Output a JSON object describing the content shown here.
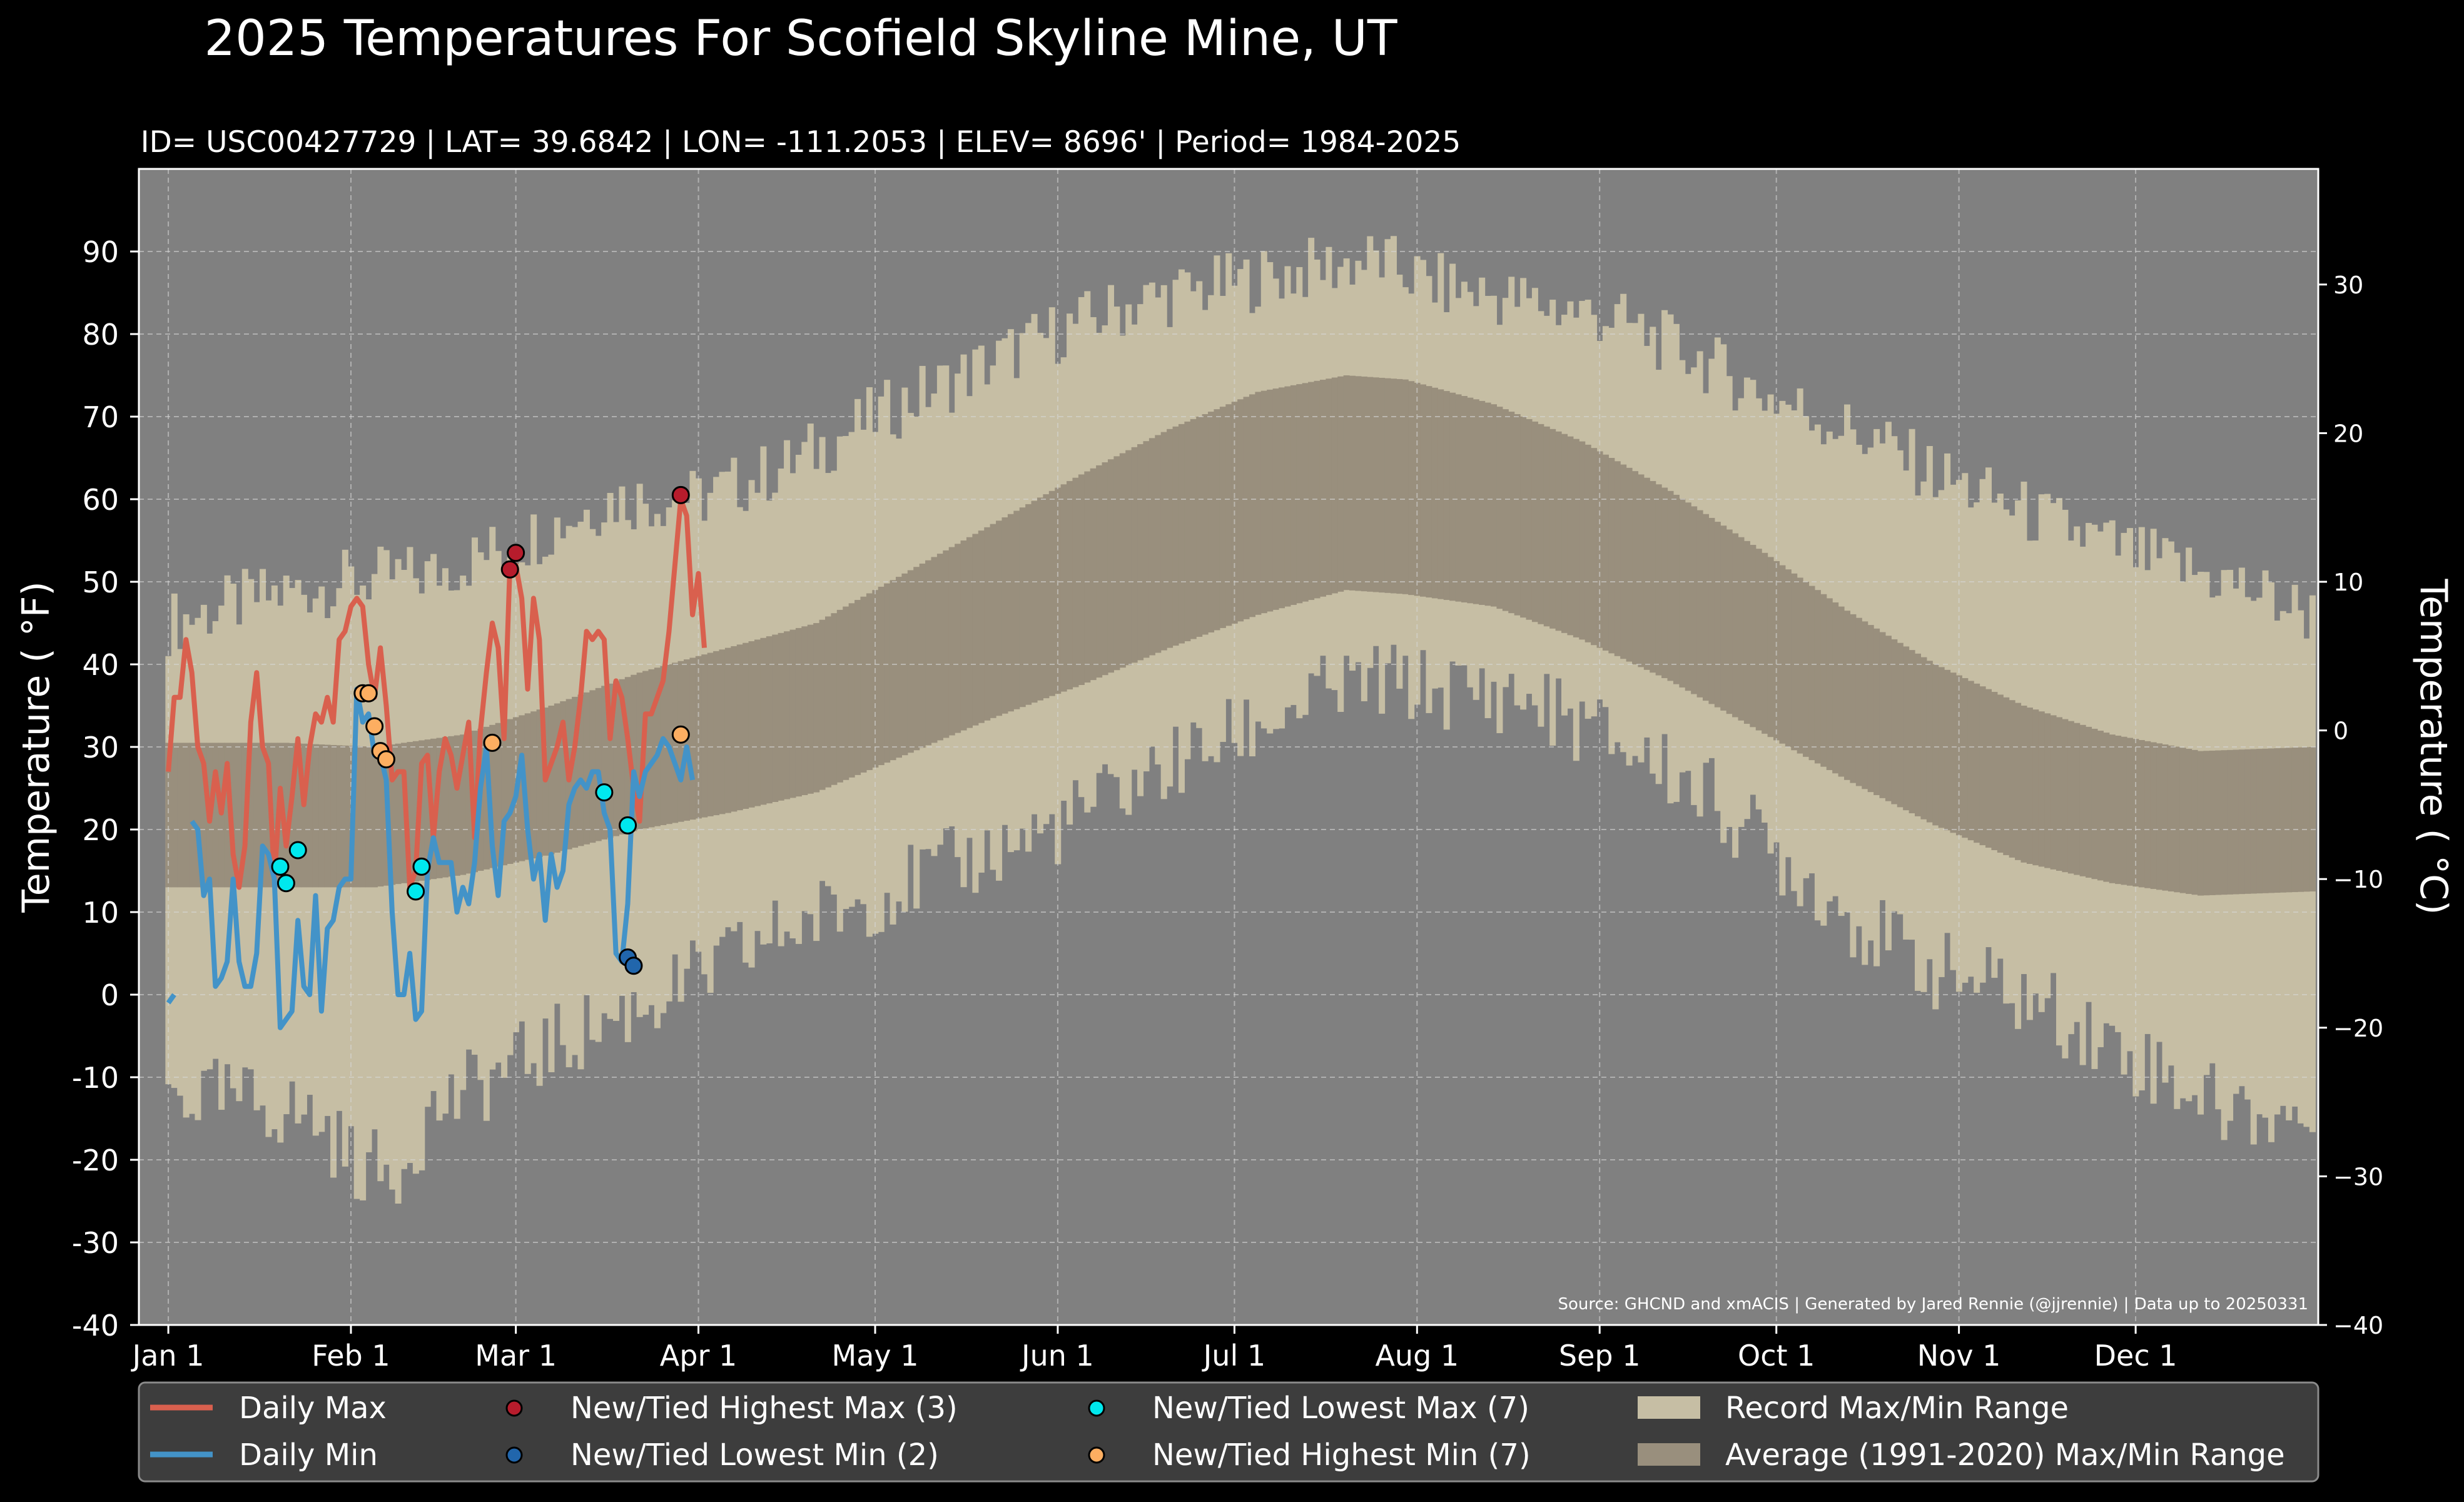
{
  "chart_data": {
    "type": "area",
    "title": "2025 Temperatures For Scofield Skyline Mine, UT",
    "subtitle": "ID= USC00427729 | LAT= 39.6842 | LON= -111.2053 | ELEV= 8696' | Period= 1984-2025",
    "ylabel": "Temperature ( °F)",
    "ylabel_right": "Temperature ( °C)",
    "source": "Source: GHCND and xmACIS | Generated by Jared Rennie (@jjrennie) | Data up to 20250331",
    "ylim": [
      -40,
      100
    ],
    "ylim_right": [
      -40,
      37.78
    ],
    "yticks": [
      -40,
      -30,
      -20,
      -10,
      0,
      10,
      20,
      30,
      40,
      50,
      60,
      70,
      80,
      90
    ],
    "yticks_right": [
      -40,
      -30,
      -20,
      -10,
      0,
      10,
      20,
      30
    ],
    "xlim_day": [
      -5,
      365
    ],
    "xticks": [
      {
        "day": 0,
        "label": "Jan 1"
      },
      {
        "day": 31,
        "label": "Feb 1"
      },
      {
        "day": 59,
        "label": "Mar 1"
      },
      {
        "day": 90,
        "label": "Apr 1"
      },
      {
        "day": 120,
        "label": "May 1"
      },
      {
        "day": 151,
        "label": "Jun 1"
      },
      {
        "day": 181,
        "label": "Jul 1"
      },
      {
        "day": 212,
        "label": "Aug 1"
      },
      {
        "day": 243,
        "label": "Sep 1"
      },
      {
        "day": 273,
        "label": "Oct 1"
      },
      {
        "day": 304,
        "label": "Nov 1"
      },
      {
        "day": 334,
        "label": "Dec 1"
      }
    ],
    "grid": true,
    "legend_position": "bottom",
    "colors": {
      "background": "#000000",
      "plot_bg": "#808080",
      "record_range": "#c6bea4",
      "average_range": "#998f7d",
      "daily_max": "#d9604e",
      "daily_min": "#4393c8",
      "highest_max": "#b71c2c",
      "lowest_min": "#2166ac",
      "lowest_max": "#00e8ee",
      "highest_min": "#fdae61",
      "legend_bg": "#3d3d3d"
    },
    "record_max_anchors": [
      [
        0,
        45
      ],
      [
        15,
        48
      ],
      [
        30,
        50
      ],
      [
        45,
        51
      ],
      [
        60,
        55
      ],
      [
        75,
        60
      ],
      [
        90,
        60
      ],
      [
        105,
        64
      ],
      [
        120,
        70
      ],
      [
        135,
        75
      ],
      [
        150,
        80
      ],
      [
        165,
        84
      ],
      [
        180,
        86
      ],
      [
        195,
        88
      ],
      [
        205,
        89
      ],
      [
        215,
        86
      ],
      [
        230,
        84
      ],
      [
        245,
        82
      ],
      [
        260,
        77
      ],
      [
        270,
        73
      ],
      [
        280,
        70
      ],
      [
        290,
        67
      ],
      [
        300,
        63
      ],
      [
        310,
        60
      ],
      [
        320,
        57
      ],
      [
        335,
        53
      ],
      [
        350,
        50
      ],
      [
        364,
        46
      ]
    ],
    "record_min_anchors": [
      [
        0,
        -12
      ],
      [
        15,
        -13
      ],
      [
        25,
        -15
      ],
      [
        31,
        -20
      ],
      [
        38,
        -22
      ],
      [
        45,
        -14
      ],
      [
        60,
        -8
      ],
      [
        75,
        -3
      ],
      [
        90,
        2
      ],
      [
        105,
        8
      ],
      [
        120,
        12
      ],
      [
        135,
        16
      ],
      [
        150,
        20
      ],
      [
        165,
        26
      ],
      [
        180,
        31
      ],
      [
        195,
        36
      ],
      [
        205,
        38
      ],
      [
        215,
        37
      ],
      [
        230,
        36
      ],
      [
        245,
        31
      ],
      [
        260,
        25
      ],
      [
        270,
        19
      ],
      [
        280,
        13
      ],
      [
        290,
        7
      ],
      [
        300,
        3
      ],
      [
        310,
        1
      ],
      [
        320,
        -2
      ],
      [
        335,
        -8
      ],
      [
        350,
        -14
      ],
      [
        364,
        -15
      ]
    ],
    "average_max_anchors": [
      [
        0,
        30.5
      ],
      [
        20,
        30.5
      ],
      [
        35,
        30
      ],
      [
        50,
        31.5
      ],
      [
        65,
        35
      ],
      [
        80,
        39
      ],
      [
        95,
        42
      ],
      [
        110,
        45
      ],
      [
        125,
        51
      ],
      [
        140,
        57
      ],
      [
        155,
        63
      ],
      [
        170,
        68.5
      ],
      [
        185,
        73
      ],
      [
        200,
        75
      ],
      [
        210,
        74.5
      ],
      [
        225,
        71.5
      ],
      [
        240,
        67
      ],
      [
        255,
        61
      ],
      [
        270,
        54
      ],
      [
        285,
        46.5
      ],
      [
        300,
        40
      ],
      [
        315,
        35
      ],
      [
        330,
        31.5
      ],
      [
        345,
        29.5
      ],
      [
        364,
        30
      ]
    ],
    "average_min_anchors": [
      [
        0,
        13
      ],
      [
        20,
        13
      ],
      [
        35,
        13
      ],
      [
        50,
        14.5
      ],
      [
        65,
        17
      ],
      [
        80,
        20
      ],
      [
        95,
        22
      ],
      [
        110,
        24.5
      ],
      [
        125,
        29
      ],
      [
        140,
        33.5
      ],
      [
        155,
        37.5
      ],
      [
        170,
        42
      ],
      [
        185,
        46
      ],
      [
        200,
        49
      ],
      [
        210,
        48.5
      ],
      [
        225,
        47
      ],
      [
        240,
        43
      ],
      [
        255,
        38
      ],
      [
        270,
        32
      ],
      [
        285,
        26
      ],
      [
        300,
        20.5
      ],
      [
        315,
        16
      ],
      [
        330,
        13.5
      ],
      [
        345,
        12
      ],
      [
        364,
        12.5
      ]
    ],
    "series": [
      {
        "name": "Daily Max",
        "values": [
          27,
          36,
          36,
          43,
          39,
          30,
          28,
          21,
          27,
          22,
          28,
          17,
          13,
          18,
          33,
          39,
          30,
          28,
          14,
          25,
          18,
          24,
          31,
          23,
          30,
          34,
          33,
          36,
          33,
          43,
          44,
          47,
          48,
          47,
          40,
          36,
          42,
          35,
          26,
          27,
          27,
          13,
          15,
          28,
          29,
          19,
          27,
          31,
          29,
          25,
          29,
          33,
          19,
          32,
          39,
          45,
          42,
          31,
          52,
          52,
          48,
          37,
          48,
          43,
          26,
          28,
          30,
          33,
          26,
          30,
          36,
          44,
          43,
          44,
          43,
          31,
          38,
          36,
          31,
          25,
          21,
          34,
          34,
          36,
          38,
          44,
          52,
          60,
          58,
          46,
          51,
          42
        ]
      },
      {
        "name": "Daily Min",
        "values": [
          -1,
          0,
          null,
          null,
          21,
          20,
          12,
          14,
          1,
          2,
          4,
          14,
          4,
          1,
          1,
          5,
          18,
          17,
          14,
          -4,
          -3,
          -2,
          9,
          1,
          0,
          12,
          -2,
          8,
          9,
          13,
          14,
          14,
          37,
          33,
          34,
          29,
          29,
          26,
          10,
          0,
          0,
          5,
          -3,
          -2,
          15,
          19,
          16,
          16,
          16,
          10,
          13,
          11,
          16,
          25,
          30,
          18,
          12,
          21,
          22,
          24,
          29,
          20,
          14,
          17,
          9,
          17,
          13,
          15,
          23,
          25,
          26,
          25,
          27,
          27,
          22,
          20,
          5,
          4,
          11,
          27,
          24,
          27,
          28,
          29,
          31,
          30,
          28,
          26,
          30,
          26
        ]
      },
      {
        "name": "New/Tied Highest Max (3)",
        "points": [
          [
            58,
            51.5
          ],
          [
            59,
            53.5
          ],
          [
            87,
            60.5
          ]
        ]
      },
      {
        "name": "New/Tied Lowest Min (2)",
        "points": [
          [
            78,
            4.5
          ],
          [
            79,
            3.5
          ]
        ]
      },
      {
        "name": "New/Tied Lowest Max (7)",
        "points": [
          [
            19,
            15.5
          ],
          [
            20,
            13.5
          ],
          [
            22,
            17.5
          ],
          [
            42,
            12.5
          ],
          [
            43,
            15.5
          ],
          [
            74,
            24.5
          ],
          [
            78,
            20.5
          ]
        ]
      },
      {
        "name": "New/Tied Highest Min (7)",
        "points": [
          [
            33,
            36.5
          ],
          [
            34,
            36.5
          ],
          [
            35,
            32.5
          ],
          [
            36,
            29.5
          ],
          [
            37,
            28.5
          ],
          [
            55,
            30.5
          ],
          [
            87,
            31.5
          ]
        ]
      },
      {
        "name": "Record Max/Min Range"
      },
      {
        "name": "Average (1991-2020) Max/Min Range"
      }
    ]
  }
}
